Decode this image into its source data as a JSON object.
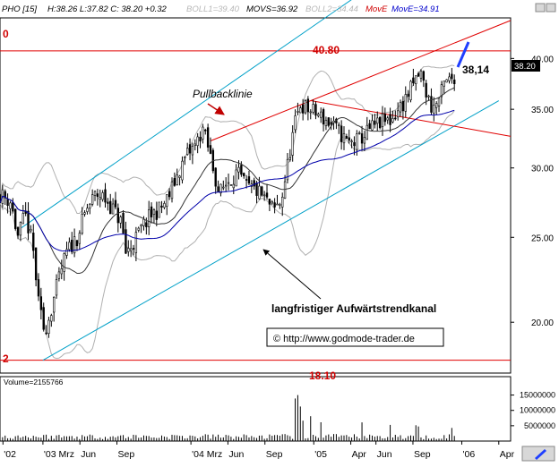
{
  "header": {
    "symbol": "PHO [15]",
    "quote": "H:38.26 L:37.82 C: 38.20 +0.32",
    "boll1": "BOLL1=39.40",
    "movs": "MOVS=36.92",
    "boll2": "BOLL2=34.44",
    "move_red": "MovE",
    "move_blue": "MovE=34.91"
  },
  "colors": {
    "candle": "#000000",
    "bollinger": "#b0b0b0",
    "moving_average": "#0000aa",
    "channel": "#00a0c8",
    "resistance": "#e00000",
    "target_arrow": "#1f3fff"
  },
  "annotations": {
    "resistance_label": "40.80",
    "support_label": "18.10",
    "top_left_edge_label": "0",
    "bottom_left_edge_label": "2",
    "price_label": "38,14",
    "last_price_box": "38.20",
    "pullback_label": "Pullbacklinie",
    "trend_channel_label": "langfristiger Aufwärtstrendkanal",
    "copyright": "© http://www.godmode-trader.de",
    "volume_label": "Volume=2155766"
  },
  "chart_data": {
    "type": "candlestick",
    "title": "",
    "price_axis": {
      "ticks": [
        20.0,
        25.0,
        30.0,
        35.0,
        40.0
      ],
      "tick_labels": [
        "20.00",
        "25.00",
        "30.00",
        "35.00",
        "40.00"
      ],
      "scale": "log",
      "range": [
        17.5,
        44.5
      ]
    },
    "volume_axis": {
      "ticks": [
        5000000,
        10000000,
        15000000
      ],
      "tick_labels": [
        "5000000",
        "10000000",
        "15000000"
      ],
      "range": [
        0,
        21000000
      ]
    },
    "time_axis": {
      "range": [
        2002.88,
        2006.33
      ],
      "ticks": [
        {
          "t": 2002.9,
          "label": "'02"
        },
        {
          "t": 2003.17,
          "label": "'03 Mrz"
        },
        {
          "t": 2003.42,
          "label": "Jun"
        },
        {
          "t": 2003.67,
          "label": "Sep"
        },
        {
          "t": 2004.17,
          "label": "'04 Mrz"
        },
        {
          "t": 2004.42,
          "label": "Jun"
        },
        {
          "t": 2004.67,
          "label": "Sep"
        },
        {
          "t": 2005.0,
          "label": "'05"
        },
        {
          "t": 2005.25,
          "label": "Apr"
        },
        {
          "t": 2005.42,
          "label": "Jun"
        },
        {
          "t": 2005.67,
          "label": "Sep"
        },
        {
          "t": 2006.0,
          "label": "'06"
        },
        {
          "t": 2006.25,
          "label": "Apr"
        }
      ]
    },
    "price_anchors": [
      [
        2002.88,
        28.0
      ],
      [
        2002.95,
        27.5
      ],
      [
        2003.0,
        25.0
      ],
      [
        2003.05,
        26.5
      ],
      [
        2003.1,
        24.5
      ],
      [
        2003.14,
        21.0
      ],
      [
        2003.18,
        19.5
      ],
      [
        2003.22,
        20.5
      ],
      [
        2003.28,
        22.5
      ],
      [
        2003.33,
        24.0
      ],
      [
        2003.4,
        25.0
      ],
      [
        2003.47,
        27.0
      ],
      [
        2003.53,
        28.0
      ],
      [
        2003.58,
        27.8
      ],
      [
        2003.64,
        27.0
      ],
      [
        2003.7,
        26.0
      ],
      [
        2003.73,
        24.0
      ],
      [
        2003.78,
        24.6
      ],
      [
        2003.83,
        25.5
      ],
      [
        2003.9,
        26.5
      ],
      [
        2003.97,
        27.0
      ],
      [
        2004.02,
        27.8
      ],
      [
        2004.08,
        29.5
      ],
      [
        2004.14,
        31.0
      ],
      [
        2004.2,
        31.8
      ],
      [
        2004.25,
        33.3
      ],
      [
        2004.3,
        31.0
      ],
      [
        2004.36,
        28.0
      ],
      [
        2004.42,
        29.0
      ],
      [
        2004.48,
        29.6
      ],
      [
        2004.55,
        28.5
      ],
      [
        2004.62,
        28.2
      ],
      [
        2004.68,
        27.5
      ],
      [
        2004.73,
        26.8
      ],
      [
        2004.78,
        27.5
      ],
      [
        2004.82,
        30.0
      ],
      [
        2004.87,
        33.5
      ],
      [
        2004.91,
        35.5
      ],
      [
        2004.96,
        35.0
      ],
      [
        2005.03,
        34.5
      ],
      [
        2005.1,
        33.8
      ],
      [
        2005.17,
        33.0
      ],
      [
        2005.23,
        32.0
      ],
      [
        2005.3,
        32.2
      ],
      [
        2005.38,
        33.2
      ],
      [
        2005.45,
        33.8
      ],
      [
        2005.52,
        34.0
      ],
      [
        2005.6,
        35.5
      ],
      [
        2005.66,
        37.0
      ],
      [
        2005.72,
        38.6
      ],
      [
        2005.76,
        36.5
      ],
      [
        2005.8,
        35.0
      ],
      [
        2005.85,
        36.0
      ],
      [
        2005.88,
        37.3
      ],
      [
        2005.92,
        37.8
      ],
      [
        2005.95,
        38.2
      ]
    ],
    "volume_spikes": [
      [
        2004.88,
        15800000
      ],
      [
        2004.9,
        11500000
      ],
      [
        2004.92,
        7500000
      ],
      [
        2004.98,
        9000000
      ],
      [
        2005.05,
        6500000
      ],
      [
        2005.33,
        6800000
      ],
      [
        2005.52,
        5500000
      ],
      [
        2005.7,
        5200000
      ],
      [
        2005.93,
        4500000
      ]
    ],
    "trend_lines": [
      {
        "name": "resistance",
        "y": 40.8
      },
      {
        "name": "support",
        "y": 18.1
      }
    ],
    "grid": false,
    "legend": "none"
  }
}
